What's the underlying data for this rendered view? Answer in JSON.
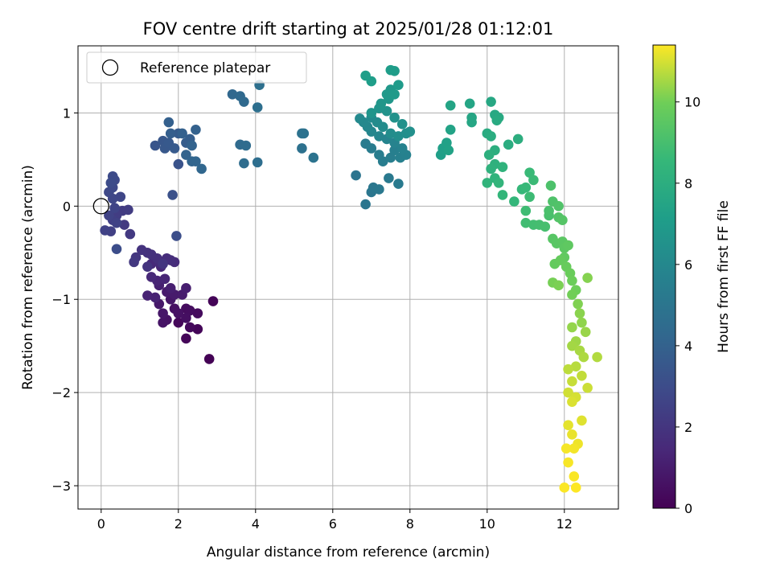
{
  "chart_data": {
    "type": "scatter",
    "title": "FOV centre drift starting at 2025/01/28 01:12:01",
    "xlabel": "Angular distance from reference (arcmin)",
    "ylabel": "Rotation from reference (arcmin)",
    "colorbar_label": "Hours from first FF file",
    "colormap": "viridis",
    "xlim": [
      -0.6,
      13.4
    ],
    "ylim": [
      -3.25,
      1.72
    ],
    "clim": [
      0,
      11.4
    ],
    "xticks": [
      0,
      2,
      4,
      6,
      8,
      10,
      12
    ],
    "yticks": [
      -3,
      -2,
      -1,
      0,
      1
    ],
    "colorbar_ticks": [
      0,
      2,
      4,
      6,
      8,
      10
    ],
    "grid": true,
    "legend": {
      "placement": "top-left",
      "label": "Reference platepar"
    },
    "reference_point": {
      "x": 0,
      "y": 0
    },
    "series": [
      {
        "name": "",
        "points": [
          [
            2.8,
            -1.64,
            0.05
          ],
          [
            2.9,
            -1.02,
            0.1
          ],
          [
            2.5,
            -1.32,
            0.15
          ],
          [
            2.2,
            -1.42,
            0.2
          ],
          [
            2.0,
            -1.25,
            0.25
          ],
          [
            2.3,
            -1.3,
            0.3
          ],
          [
            2.5,
            -1.15,
            0.35
          ],
          [
            2.2,
            -1.1,
            0.4
          ],
          [
            2.3,
            -1.12,
            0.45
          ],
          [
            2.2,
            -1.2,
            0.5
          ],
          [
            1.9,
            -1.1,
            0.55
          ],
          [
            2.0,
            -1.15,
            0.6
          ],
          [
            1.7,
            -1.22,
            0.65
          ],
          [
            1.6,
            -1.25,
            0.7
          ],
          [
            1.8,
            -1.0,
            0.75
          ],
          [
            1.6,
            -1.15,
            0.8
          ],
          [
            1.5,
            -1.05,
            0.85
          ],
          [
            1.7,
            -0.92,
            0.9
          ],
          [
            1.9,
            -0.95,
            0.95
          ],
          [
            2.1,
            -0.95,
            1.0
          ],
          [
            2.2,
            -0.88,
            1.05
          ],
          [
            1.8,
            -0.88,
            1.1
          ],
          [
            1.5,
            -0.85,
            1.15
          ],
          [
            1.4,
            -0.98,
            1.2
          ],
          [
            1.2,
            -0.96,
            1.25
          ],
          [
            1.45,
            -0.8,
            1.3
          ],
          [
            1.65,
            -0.78,
            1.35
          ],
          [
            1.55,
            -0.65,
            1.4
          ],
          [
            1.3,
            -0.76,
            1.45
          ],
          [
            1.3,
            -0.62,
            1.5
          ],
          [
            1.5,
            -0.6,
            1.55
          ],
          [
            1.9,
            -0.6,
            1.6
          ],
          [
            1.7,
            -0.56,
            1.65
          ],
          [
            1.8,
            -0.58,
            1.7
          ],
          [
            1.45,
            -0.56,
            1.75
          ],
          [
            1.3,
            -0.52,
            1.8
          ],
          [
            1.2,
            -0.5,
            1.85
          ],
          [
            1.05,
            -0.47,
            1.9
          ],
          [
            1.2,
            -0.65,
            1.95
          ],
          [
            1.6,
            -0.62,
            2.0
          ],
          [
            0.9,
            -0.55,
            2.05
          ],
          [
            0.85,
            -0.6,
            2.1
          ],
          [
            0.75,
            -0.3,
            2.15
          ],
          [
            0.6,
            -0.2,
            2.2
          ],
          [
            0.55,
            -0.05,
            2.25
          ],
          [
            0.7,
            -0.04,
            2.3
          ],
          [
            0.4,
            -0.1,
            2.35
          ],
          [
            0.3,
            -0.15,
            2.4
          ],
          [
            0.25,
            -0.27,
            2.45
          ],
          [
            0.1,
            -0.26,
            2.5
          ],
          [
            0.4,
            -0.18,
            2.55
          ],
          [
            0.2,
            -0.1,
            2.6
          ],
          [
            0.35,
            -0.02,
            2.65
          ],
          [
            0.5,
            0.1,
            2.7
          ],
          [
            0.3,
            0.08,
            2.75
          ],
          [
            0.2,
            0.15,
            2.8
          ],
          [
            0.3,
            0.2,
            2.85
          ],
          [
            0.35,
            0.28,
            2.9
          ],
          [
            0.3,
            0.32,
            2.95
          ],
          [
            0.25,
            0.25,
            3.0
          ],
          [
            0.4,
            -0.46,
            3.05
          ],
          [
            1.95,
            -0.32,
            3.1
          ],
          [
            1.85,
            0.12,
            3.2
          ],
          [
            2.0,
            0.45,
            3.3
          ],
          [
            1.4,
            0.65,
            3.4
          ],
          [
            1.6,
            0.7,
            3.5
          ],
          [
            1.65,
            0.62,
            3.55
          ],
          [
            1.75,
            0.68,
            3.6
          ],
          [
            1.9,
            0.62,
            3.65
          ],
          [
            2.0,
            0.78,
            3.7
          ],
          [
            2.2,
            0.68,
            3.75
          ],
          [
            2.3,
            0.72,
            3.8
          ],
          [
            1.8,
            0.78,
            3.85
          ],
          [
            1.75,
            0.9,
            3.9
          ],
          [
            2.1,
            0.78,
            3.95
          ],
          [
            2.45,
            0.82,
            4.0
          ],
          [
            2.35,
            0.65,
            4.05
          ],
          [
            2.2,
            0.55,
            4.1
          ],
          [
            2.35,
            0.48,
            4.15
          ],
          [
            2.45,
            0.48,
            4.2
          ],
          [
            2.6,
            0.4,
            4.25
          ],
          [
            3.4,
            1.2,
            4.3
          ],
          [
            3.6,
            1.18,
            4.35
          ],
          [
            3.7,
            1.12,
            4.4
          ],
          [
            3.6,
            0.66,
            4.45
          ],
          [
            3.75,
            0.65,
            4.5
          ],
          [
            3.7,
            0.46,
            4.55
          ],
          [
            4.05,
            0.47,
            4.6
          ],
          [
            4.05,
            1.06,
            4.65
          ],
          [
            4.1,
            1.3,
            4.7
          ],
          [
            5.2,
            0.62,
            4.75
          ],
          [
            5.25,
            0.78,
            4.8
          ],
          [
            5.2,
            0.78,
            4.85
          ],
          [
            5.5,
            0.52,
            4.9
          ],
          [
            6.6,
            0.33,
            4.95
          ],
          [
            6.85,
            0.02,
            5.0
          ],
          [
            7.0,
            0.15,
            5.05
          ],
          [
            7.05,
            0.2,
            5.1
          ],
          [
            7.2,
            0.18,
            5.15
          ],
          [
            7.45,
            0.3,
            5.2
          ],
          [
            7.7,
            0.24,
            5.25
          ],
          [
            6.85,
            0.67,
            5.3
          ],
          [
            7.0,
            0.62,
            5.35
          ],
          [
            7.2,
            0.55,
            5.4
          ],
          [
            7.3,
            0.48,
            5.45
          ],
          [
            7.5,
            0.52,
            5.5
          ],
          [
            7.6,
            0.6,
            5.55
          ],
          [
            7.75,
            0.52,
            5.6
          ],
          [
            7.9,
            0.55,
            5.65
          ],
          [
            7.8,
            0.62,
            5.7
          ],
          [
            7.6,
            0.68,
            5.75
          ],
          [
            7.4,
            0.72,
            5.8
          ],
          [
            7.2,
            0.75,
            5.85
          ],
          [
            7.0,
            0.8,
            5.9
          ],
          [
            6.9,
            0.85,
            5.95
          ],
          [
            6.8,
            0.9,
            6.0
          ],
          [
            6.7,
            0.94,
            6.05
          ],
          [
            7.0,
            0.95,
            6.1
          ],
          [
            7.15,
            0.9,
            6.15
          ],
          [
            7.3,
            0.85,
            6.2
          ],
          [
            7.5,
            0.78,
            6.25
          ],
          [
            7.7,
            0.75,
            6.3
          ],
          [
            7.9,
            0.78,
            6.35
          ],
          [
            8.0,
            0.8,
            6.4
          ],
          [
            7.8,
            0.88,
            6.45
          ],
          [
            7.6,
            0.95,
            6.5
          ],
          [
            7.4,
            1.02,
            6.55
          ],
          [
            7.2,
            1.05,
            6.6
          ],
          [
            7.0,
            1.0,
            6.65
          ],
          [
            7.25,
            1.1,
            6.7
          ],
          [
            7.45,
            1.15,
            6.75
          ],
          [
            7.5,
            1.25,
            6.8
          ],
          [
            7.4,
            1.2,
            6.85
          ],
          [
            7.6,
            1.2,
            6.9
          ],
          [
            7.7,
            1.3,
            6.95
          ],
          [
            7.6,
            1.45,
            7.0
          ],
          [
            7.5,
            1.46,
            7.05
          ],
          [
            7.0,
            1.34,
            7.1
          ],
          [
            6.85,
            1.4,
            7.15
          ],
          [
            8.8,
            0.55,
            7.2
          ],
          [
            8.85,
            0.62,
            7.25
          ],
          [
            8.95,
            0.68,
            7.3
          ],
          [
            9.0,
            0.6,
            7.35
          ],
          [
            9.05,
            0.82,
            7.4
          ],
          [
            9.05,
            1.08,
            7.45
          ],
          [
            9.55,
            1.1,
            7.5
          ],
          [
            9.6,
            0.95,
            7.55
          ],
          [
            9.6,
            0.9,
            7.6
          ],
          [
            10.1,
            1.12,
            7.65
          ],
          [
            10.2,
            0.98,
            7.7
          ],
          [
            10.3,
            0.95,
            7.75
          ],
          [
            10.25,
            0.92,
            7.8
          ],
          [
            10.0,
            0.78,
            7.85
          ],
          [
            10.1,
            0.75,
            7.9
          ],
          [
            10.55,
            0.66,
            7.95
          ],
          [
            10.8,
            0.72,
            8.0
          ],
          [
            10.2,
            0.6,
            8.05
          ],
          [
            10.05,
            0.55,
            8.1
          ],
          [
            10.2,
            0.45,
            8.15
          ],
          [
            10.1,
            0.4,
            8.2
          ],
          [
            10.4,
            0.42,
            8.25
          ],
          [
            10.2,
            0.3,
            8.3
          ],
          [
            10.0,
            0.25,
            8.35
          ],
          [
            10.3,
            0.25,
            8.4
          ],
          [
            10.4,
            0.12,
            8.45
          ],
          [
            10.7,
            0.05,
            8.5
          ],
          [
            10.9,
            0.18,
            8.55
          ],
          [
            11.0,
            0.2,
            8.6
          ],
          [
            11.1,
            0.36,
            8.65
          ],
          [
            11.2,
            0.28,
            8.7
          ],
          [
            11.1,
            0.1,
            8.75
          ],
          [
            11.0,
            -0.05,
            8.8
          ],
          [
            11.0,
            -0.18,
            8.85
          ],
          [
            11.2,
            -0.2,
            8.9
          ],
          [
            11.35,
            -0.2,
            8.95
          ],
          [
            11.5,
            -0.22,
            9.0
          ],
          [
            11.6,
            -0.1,
            9.05
          ],
          [
            11.6,
            -0.05,
            9.1
          ],
          [
            11.65,
            0.22,
            9.15
          ],
          [
            11.7,
            0.05,
            9.2
          ],
          [
            11.85,
            0.0,
            9.25
          ],
          [
            11.85,
            -0.12,
            9.3
          ],
          [
            11.95,
            -0.15,
            9.35
          ],
          [
            11.7,
            -0.35,
            9.4
          ],
          [
            11.8,
            -0.4,
            9.45
          ],
          [
            11.95,
            -0.38,
            9.5
          ],
          [
            12.0,
            -0.45,
            9.55
          ],
          [
            12.1,
            -0.42,
            9.6
          ],
          [
            12.0,
            -0.55,
            9.65
          ],
          [
            11.75,
            -0.62,
            9.7
          ],
          [
            11.9,
            -0.58,
            9.75
          ],
          [
            12.05,
            -0.65,
            9.8
          ],
          [
            12.15,
            -0.72,
            9.85
          ],
          [
            12.2,
            -0.8,
            9.9
          ],
          [
            12.3,
            -0.9,
            9.95
          ],
          [
            12.2,
            -0.95,
            10.0
          ],
          [
            11.7,
            -0.82,
            10.05
          ],
          [
            11.85,
            -0.85,
            10.1
          ],
          [
            12.35,
            -1.05,
            10.15
          ],
          [
            12.6,
            -0.77,
            10.2
          ],
          [
            12.4,
            -1.15,
            10.25
          ],
          [
            12.45,
            -1.25,
            10.3
          ],
          [
            12.2,
            -1.3,
            10.35
          ],
          [
            12.55,
            -1.35,
            10.4
          ],
          [
            12.3,
            -1.45,
            10.45
          ],
          [
            12.2,
            -1.5,
            10.5
          ],
          [
            12.4,
            -1.55,
            10.55
          ],
          [
            12.5,
            -1.62,
            10.6
          ],
          [
            12.85,
            -1.62,
            10.65
          ],
          [
            12.3,
            -1.72,
            10.7
          ],
          [
            12.1,
            -1.75,
            10.75
          ],
          [
            12.45,
            -1.82,
            10.8
          ],
          [
            12.2,
            -1.88,
            10.85
          ],
          [
            12.6,
            -1.95,
            10.9
          ],
          [
            12.1,
            -2.0,
            10.95
          ],
          [
            12.3,
            -2.05,
            11.0
          ],
          [
            12.2,
            -2.1,
            11.05
          ],
          [
            12.45,
            -2.3,
            11.1
          ],
          [
            12.1,
            -2.35,
            11.15
          ],
          [
            12.2,
            -2.45,
            11.2
          ],
          [
            12.35,
            -2.55,
            11.25
          ],
          [
            12.25,
            -2.6,
            11.3
          ],
          [
            12.05,
            -2.6,
            11.32
          ],
          [
            12.1,
            -2.75,
            11.34
          ],
          [
            12.25,
            -2.9,
            11.36
          ],
          [
            12.0,
            -3.02,
            11.38
          ],
          [
            12.3,
            -3.02,
            11.4
          ]
        ]
      }
    ]
  }
}
